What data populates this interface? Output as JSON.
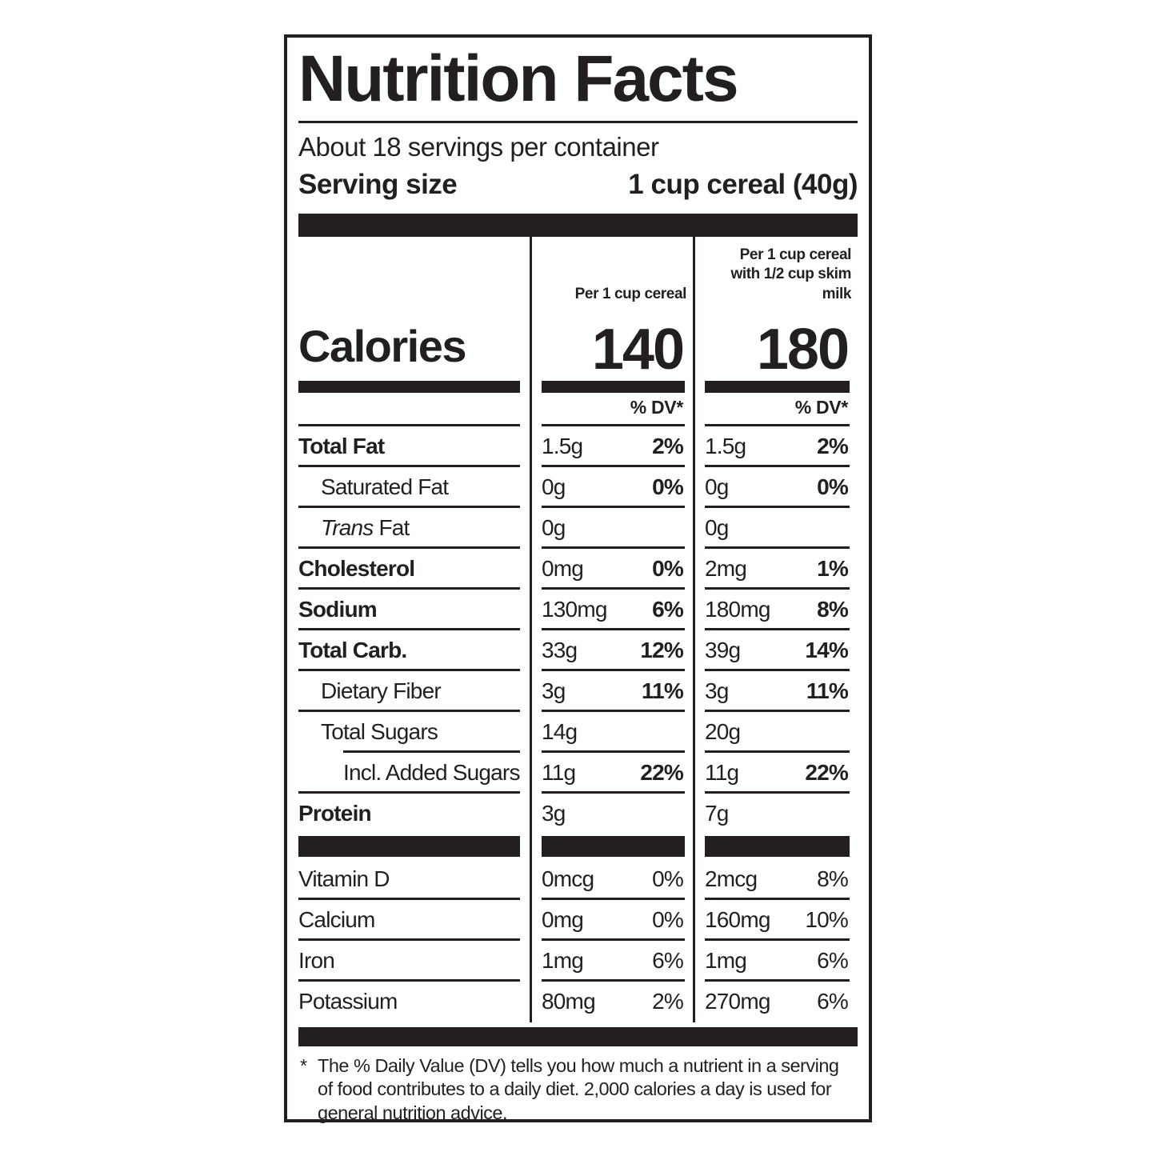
{
  "nutrition_label": {
    "title": "Nutrition Facts",
    "servings_per_container": "About 18 servings per container",
    "serving_size": {
      "label": "Serving size",
      "value": "1 cup cereal (40g)"
    },
    "calories_label": "Calories",
    "dv_header": "% DV*",
    "columns": [
      {
        "header_lines": [
          "Per 1 cup cereal",
          ""
        ],
        "calories": "140"
      },
      {
        "header_lines": [
          "Per 1 cup cereal",
          "with 1/2 cup skim milk"
        ],
        "calories": "180"
      }
    ],
    "nutrients": [
      {
        "name": "Total Fat",
        "bold": true,
        "indent": 0,
        "values": [
          {
            "amount": "1.5g",
            "dv": "2%"
          },
          {
            "amount": "1.5g",
            "dv": "2%"
          }
        ]
      },
      {
        "name": "Saturated Fat",
        "bold": false,
        "indent": 1,
        "values": [
          {
            "amount": "0g",
            "dv": "0%"
          },
          {
            "amount": "0g",
            "dv": "0%"
          }
        ]
      },
      {
        "name": "Trans Fat",
        "italic_prefix": "Trans",
        "bold": false,
        "indent": 1,
        "values": [
          {
            "amount": "0g",
            "dv": ""
          },
          {
            "amount": "0g",
            "dv": ""
          }
        ]
      },
      {
        "name": "Cholesterol",
        "bold": true,
        "indent": 0,
        "values": [
          {
            "amount": "0mg",
            "dv": "0%"
          },
          {
            "amount": "2mg",
            "dv": "1%"
          }
        ]
      },
      {
        "name": "Sodium",
        "bold": true,
        "indent": 0,
        "values": [
          {
            "amount": "130mg",
            "dv": "6%"
          },
          {
            "amount": "180mg",
            "dv": "8%"
          }
        ]
      },
      {
        "name": "Total Carb.",
        "bold": true,
        "indent": 0,
        "values": [
          {
            "amount": "33g",
            "dv": "12%"
          },
          {
            "amount": "39g",
            "dv": "14%"
          }
        ]
      },
      {
        "name": "Dietary Fiber",
        "bold": false,
        "indent": 1,
        "values": [
          {
            "amount": "3g",
            "dv": "11%"
          },
          {
            "amount": "3g",
            "dv": "11%"
          }
        ]
      },
      {
        "name": "Total Sugars",
        "bold": false,
        "indent": 1,
        "values": [
          {
            "amount": "14g",
            "dv": ""
          },
          {
            "amount": "20g",
            "dv": ""
          }
        ]
      },
      {
        "name": "Incl. Added Sugars",
        "bold": false,
        "indent": 2,
        "values": [
          {
            "amount": "11g",
            "dv": "22%"
          },
          {
            "amount": "11g",
            "dv": "22%"
          }
        ]
      },
      {
        "name": "Protein",
        "bold": true,
        "indent": 0,
        "values": [
          {
            "amount": "3g",
            "dv": ""
          },
          {
            "amount": "7g",
            "dv": ""
          }
        ]
      }
    ],
    "vitamins": [
      {
        "name": "Vitamin D",
        "values": [
          {
            "amount": "0mcg",
            "dv": "0%"
          },
          {
            "amount": "2mcg",
            "dv": "8%"
          }
        ]
      },
      {
        "name": "Calcium",
        "values": [
          {
            "amount": "0mg",
            "dv": "0%"
          },
          {
            "amount": "160mg",
            "dv": "10%"
          }
        ]
      },
      {
        "name": "Iron",
        "values": [
          {
            "amount": "1mg",
            "dv": "6%"
          },
          {
            "amount": "1mg",
            "dv": "6%"
          }
        ]
      },
      {
        "name": "Potassium",
        "values": [
          {
            "amount": "80mg",
            "dv": "2%"
          },
          {
            "amount": "270mg",
            "dv": "6%"
          }
        ]
      }
    ],
    "footnote": {
      "marker": "*",
      "text": "The % Daily Value (DV) tells you how much a nutrient in a serving of food contributes to a daily diet. 2,000 calories a day is used for general nutrition advice."
    },
    "colors": {
      "ink": "#231f20",
      "background": "#ffffff"
    }
  }
}
